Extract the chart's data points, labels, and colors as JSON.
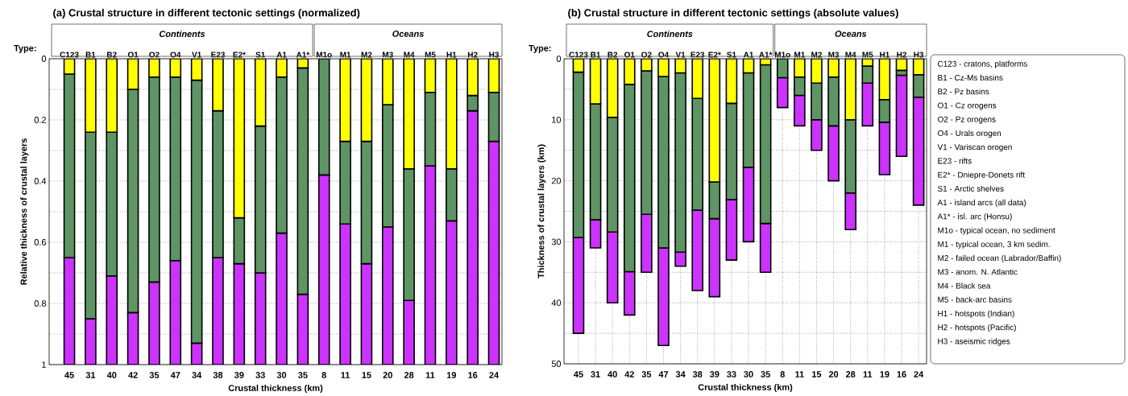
{
  "chart_data": [
    {
      "type": "bar",
      "stacked": true,
      "title": "(a) Crustal structure in different tectonic settings (normalized)",
      "xlabel": "Crustal thickness (km)",
      "ylabel": "Relative thickness of crustal layers",
      "categories": [
        "C123",
        "B1",
        "B2",
        "O1",
        "O2",
        "O4",
        "V1",
        "E23",
        "E2*",
        "S1",
        "A1",
        "A1*",
        "M1o",
        "M1",
        "M2",
        "M3",
        "M4",
        "M5",
        "H1",
        "H2",
        "H3"
      ],
      "series": [
        {
          "color": "#ffff00",
          "values": [
            0.05,
            0.24,
            0.24,
            0.1,
            0.06,
            0.06,
            0.07,
            0.17,
            0.52,
            0.22,
            0.06,
            0.03,
            0,
            0.27,
            0.27,
            0.15,
            0.36,
            0.11,
            0.36,
            0.12,
            0.11
          ]
        },
        {
          "color": "#5f9564",
          "values": [
            0.6,
            0.61,
            0.47,
            0.73,
            0.67,
            0.6,
            0.86,
            0.48,
            0.15,
            0.48,
            0.51,
            0.74,
            0.38,
            0.27,
            0.4,
            0.4,
            0.43,
            0.24,
            0.17,
            0.05,
            0.16
          ]
        },
        {
          "color": "#cc33ff",
          "values": [
            0.35,
            0.15,
            0.29,
            0.17,
            0.27,
            0.34,
            0.07,
            0.35,
            0.33,
            0.3,
            0.43,
            0.23,
            0.62,
            0.46,
            0.33,
            0.45,
            0.21,
            0.65,
            0.47,
            0.83,
            0.73
          ]
        }
      ],
      "ylim": [
        1,
        0
      ],
      "yticks": [
        0,
        {
          "value": 0.1,
          "label": null
        },
        0.2,
        {
          "value": 0.3,
          "label": null
        },
        0.4,
        {
          "value": 0.5,
          "label": null
        },
        0.6,
        {
          "value": 0.7,
          "label": null
        },
        0.8,
        {
          "value": 0.9,
          "label": null
        },
        1
      ],
      "grid": "y",
      "annotations": [
        "Type:",
        "Continents",
        "Oceans",
        "45",
        "31",
        "40",
        "42",
        "35",
        "47",
        "34",
        "38",
        "39",
        "33",
        "30",
        "35",
        "8",
        "11",
        "15",
        "20",
        "28",
        "11",
        "19",
        "16",
        "24"
      ]
    },
    {
      "type": "bar",
      "stacked": true,
      "title": "(b) Crustal structure in different tectonic settings (absolute values)",
      "xlabel": "Crustal thickness (km)",
      "ylabel": "Thickness of crustal layers (km)",
      "categories": [
        "C123",
        "B1",
        "B2",
        "O1",
        "O2",
        "O4",
        "V1",
        "E23",
        "E2*",
        "S1",
        "A1",
        "A1*",
        "M1o",
        "M1",
        "M2",
        "M3",
        "M4",
        "M5",
        "H1",
        "H2",
        "H3"
      ],
      "series": [
        {
          "color": "#ffff00",
          "values": [
            2.2,
            7.4,
            9.6,
            4.2,
            2.0,
            2.9,
            2.3,
            6.5,
            20.2,
            7.3,
            2.3,
            1.0,
            0,
            3.0,
            4.0,
            3.0,
            10.0,
            1.2,
            6.7,
            1.9,
            2.6
          ]
        },
        {
          "color": "#5f9564",
          "values": [
            27.1,
            19.0,
            18.8,
            30.7,
            23.5,
            28.1,
            29.4,
            18.3,
            6.0,
            15.8,
            15.5,
            26.0,
            3.1,
            3.0,
            6.0,
            8.0,
            12.0,
            2.8,
            3.7,
            0.8,
            3.7
          ]
        },
        {
          "color": "#cc33ff",
          "values": [
            15.7,
            4.6,
            11.6,
            7.1,
            9.5,
            16.0,
            2.3,
            13.2,
            12.8,
            9.9,
            12.2,
            8.0,
            4.9,
            5.0,
            5.0,
            9.0,
            6.0,
            7.0,
            8.6,
            13.3,
            17.7
          ]
        }
      ],
      "ylim": [
        50,
        0
      ],
      "yticks": [
        0,
        {
          "value": 5,
          "label": null
        },
        10,
        {
          "value": 15,
          "label": null
        },
        20,
        {
          "value": 25,
          "label": null
        },
        30,
        {
          "value": 35,
          "label": null
        },
        40,
        {
          "value": 45,
          "label": null
        },
        50
      ],
      "grid": true,
      "annotations": [
        "Type:",
        "Continents",
        "Oceans",
        "45",
        "31",
        "40",
        "42",
        "35",
        "47",
        "34",
        "38",
        "39",
        "33",
        "30",
        "35",
        "8",
        "11",
        "15",
        "20",
        "28",
        "11",
        "19",
        "16",
        "24",
        "C123 - cratons, platforms",
        "B1 - Cz-Ms basins",
        "B2 - Pz basins",
        "O1 - Cz orogens",
        "O2 - Pz orogens",
        "O4 - Urals orogen",
        "V1 - Variscan orogen",
        "E23 - rifts",
        "E2* - Dniepre-Donets rift",
        "S1 - Arctic shelves",
        "A1 - island arcs (all data)",
        "A1* - isl. arc (Honsu)",
        "M1o - typical ocean, no sediment",
        "M1 - typical ocean, 3 km sedim.",
        "M2 - failed ocean (Labrador/Baffin)",
        "M3 - anom. N. Atlantic",
        "M4 - Black sea",
        "M5 - back-arc basins",
        "H1 - hotspots (Indian)",
        "H2 - hotspots (Pacific)",
        "H3 - aseismic ridges"
      ]
    }
  ]
}
